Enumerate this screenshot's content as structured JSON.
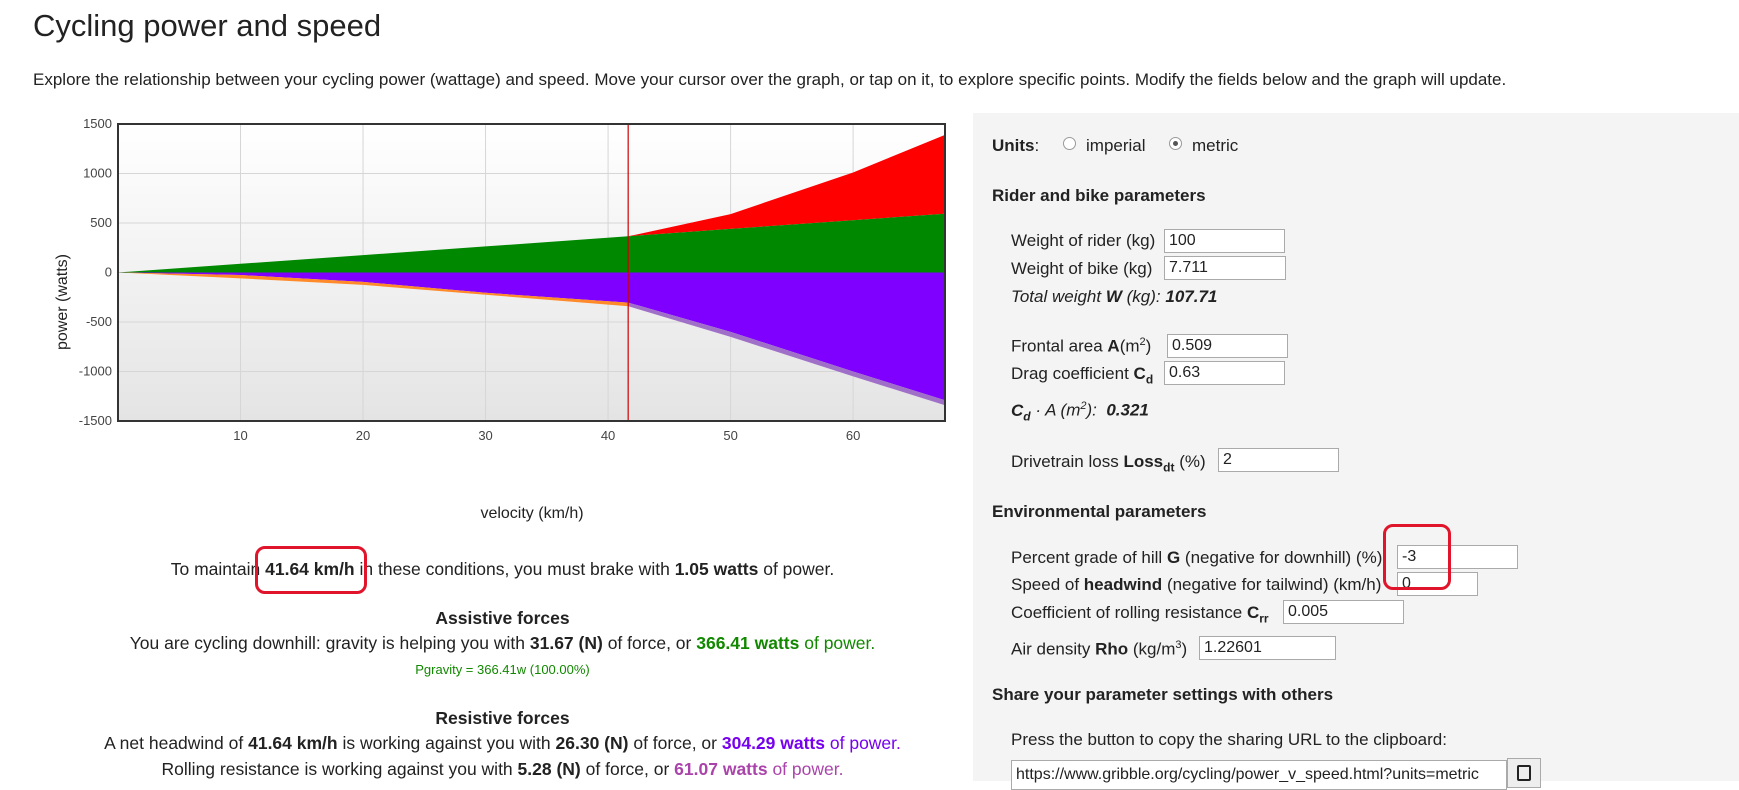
{
  "title": "Cycling power and speed",
  "intro": "Explore the relationship between your cycling power (wattage) and speed. Move your cursor over the graph, or tap on it, to explore specific points. Modify the fields below and the graph will update.",
  "chart_data": {
    "type": "area",
    "xlabel": "velocity (km/h)",
    "ylabel": "power (watts)",
    "xlim": [
      0,
      67.5
    ],
    "ylim": [
      -1500,
      1500
    ],
    "x_ticks": [
      10,
      20,
      30,
      40,
      50,
      60
    ],
    "y_ticks": [
      1500,
      1000,
      500,
      0,
      -500,
      -1000,
      -1500
    ],
    "cursor_x": 41.64,
    "grid": true,
    "series": [
      {
        "color": "#ff0000",
        "x": [
          0,
          10,
          20,
          30,
          41.64,
          50,
          60,
          67.5
        ],
        "upper": [
          0,
          88,
          176,
          264,
          366,
          590,
          1010,
          1390
        ],
        "lower": [
          0,
          88,
          176,
          264,
          366,
          440,
          528,
          594
        ]
      },
      {
        "color": "#008800",
        "x": [
          0,
          10,
          20,
          30,
          41.64,
          50,
          60,
          67.5
        ],
        "upper": [
          0,
          88,
          176,
          264,
          366,
          440,
          528,
          594
        ],
        "lower": [
          0,
          0,
          0,
          0,
          0,
          0,
          0,
          0
        ]
      },
      {
        "color": "#7f00ff",
        "x": [
          0,
          10,
          20,
          30,
          41.64,
          50,
          60,
          67.5
        ],
        "upper": [
          0,
          0,
          0,
          0,
          0,
          0,
          0,
          0
        ],
        "lower": [
          0,
          -25,
          -95,
          -205,
          -304,
          -600,
          -1000,
          -1290
        ]
      },
      {
        "color": "#ff8a2a",
        "x": [
          0,
          10,
          20,
          30,
          41.64
        ],
        "upper": [
          0,
          -25,
          -95,
          -205,
          -304
        ],
        "lower": [
          0,
          -60,
          -125,
          -225,
          -340
        ]
      },
      {
        "color": "#a070c8",
        "x": [
          41.64,
          50,
          60,
          67.5
        ],
        "upper": [
          -304,
          -600,
          -1000,
          -1290
        ],
        "lower": [
          -340,
          -650,
          -1050,
          -1340
        ]
      }
    ]
  },
  "result": {
    "pre": "To maintain",
    "speed": "41.64 km/h",
    "mid": "in these conditions, you must brake with",
    "watts": "1.05 watts",
    "post": "of power."
  },
  "assistive": {
    "heading": "Assistive forces",
    "line_pre": "You are cycling downhill: gravity is helping you with",
    "force": "31.67 (N)",
    "line_mid": "of force, or",
    "watts": "366.41 watts",
    "line_post": "of power.",
    "formula": "Pgravity = 366.41w (100.00%)"
  },
  "resistive": {
    "heading": "Resistive forces",
    "wind_pre": "A net headwind of",
    "wind_speed": "41.64 km/h",
    "wind_mid": "is working against you with",
    "wind_force": "26.30 (N)",
    "wind_mid2": "of force, or",
    "wind_watts": "304.29 watts",
    "wind_post": "of power.",
    "roll_pre": "Rolling resistance is working against you with",
    "roll_force": "5.28 (N)",
    "roll_mid": "of force, or",
    "roll_watts": "61.07 watts",
    "roll_post": "of power."
  },
  "panel": {
    "units_label": "Units",
    "units_colon": ":",
    "imperial": "imperial",
    "metric": "metric",
    "rider_section": "Rider and bike parameters",
    "rider_weight_label": "Weight of rider (kg)",
    "rider_weight": "100",
    "bike_weight_label": "Weight of bike (kg)",
    "bike_weight": "7.711",
    "total_weight_label": "Total weight",
    "total_weight_sym": "W",
    "total_weight_unit": "(kg):",
    "total_weight": "107.71",
    "frontal_label": "Frontal area",
    "frontal_sym": "A",
    "frontal_unit": "(m",
    "frontal": "0.509",
    "drag_label": "Drag coefficient",
    "drag_sym": "C",
    "drag_sub": "d",
    "drag": "0.63",
    "cda_sym": "C",
    "cda_sub": "d",
    "cda_mid": "· A (m",
    "cda_end": "):",
    "cda": "0.321",
    "drivetrain_label": "Drivetrain loss",
    "drivetrain_sym": "Loss",
    "drivetrain_sub": "dt",
    "drivetrain_unit": "(%)",
    "drivetrain": "2",
    "env_section": "Environmental parameters",
    "grade_label": "Percent grade of hill",
    "grade_sym": "G",
    "grade_unit": "(negative for downhill) (%)",
    "grade": "-3",
    "headwind_label": "Speed of",
    "headwind_sym": "headwind",
    "headwind_unit": "(negative for tailwind) (km/h)",
    "headwind": "0",
    "crr_label": "Coefficient of rolling resistance",
    "crr_sym": "C",
    "crr_sub": "rr",
    "crr": "0.005",
    "rho_label": "Air density",
    "rho_sym": "Rho",
    "rho_unit": "(kg/m",
    "rho": "1.22601",
    "share_section": "Share your parameter settings with others",
    "share_text": "Press the button to copy the sharing URL to the clipboard:",
    "share_url": "https://www.gribble.org/cycling/power_v_speed.html?units=metric"
  }
}
